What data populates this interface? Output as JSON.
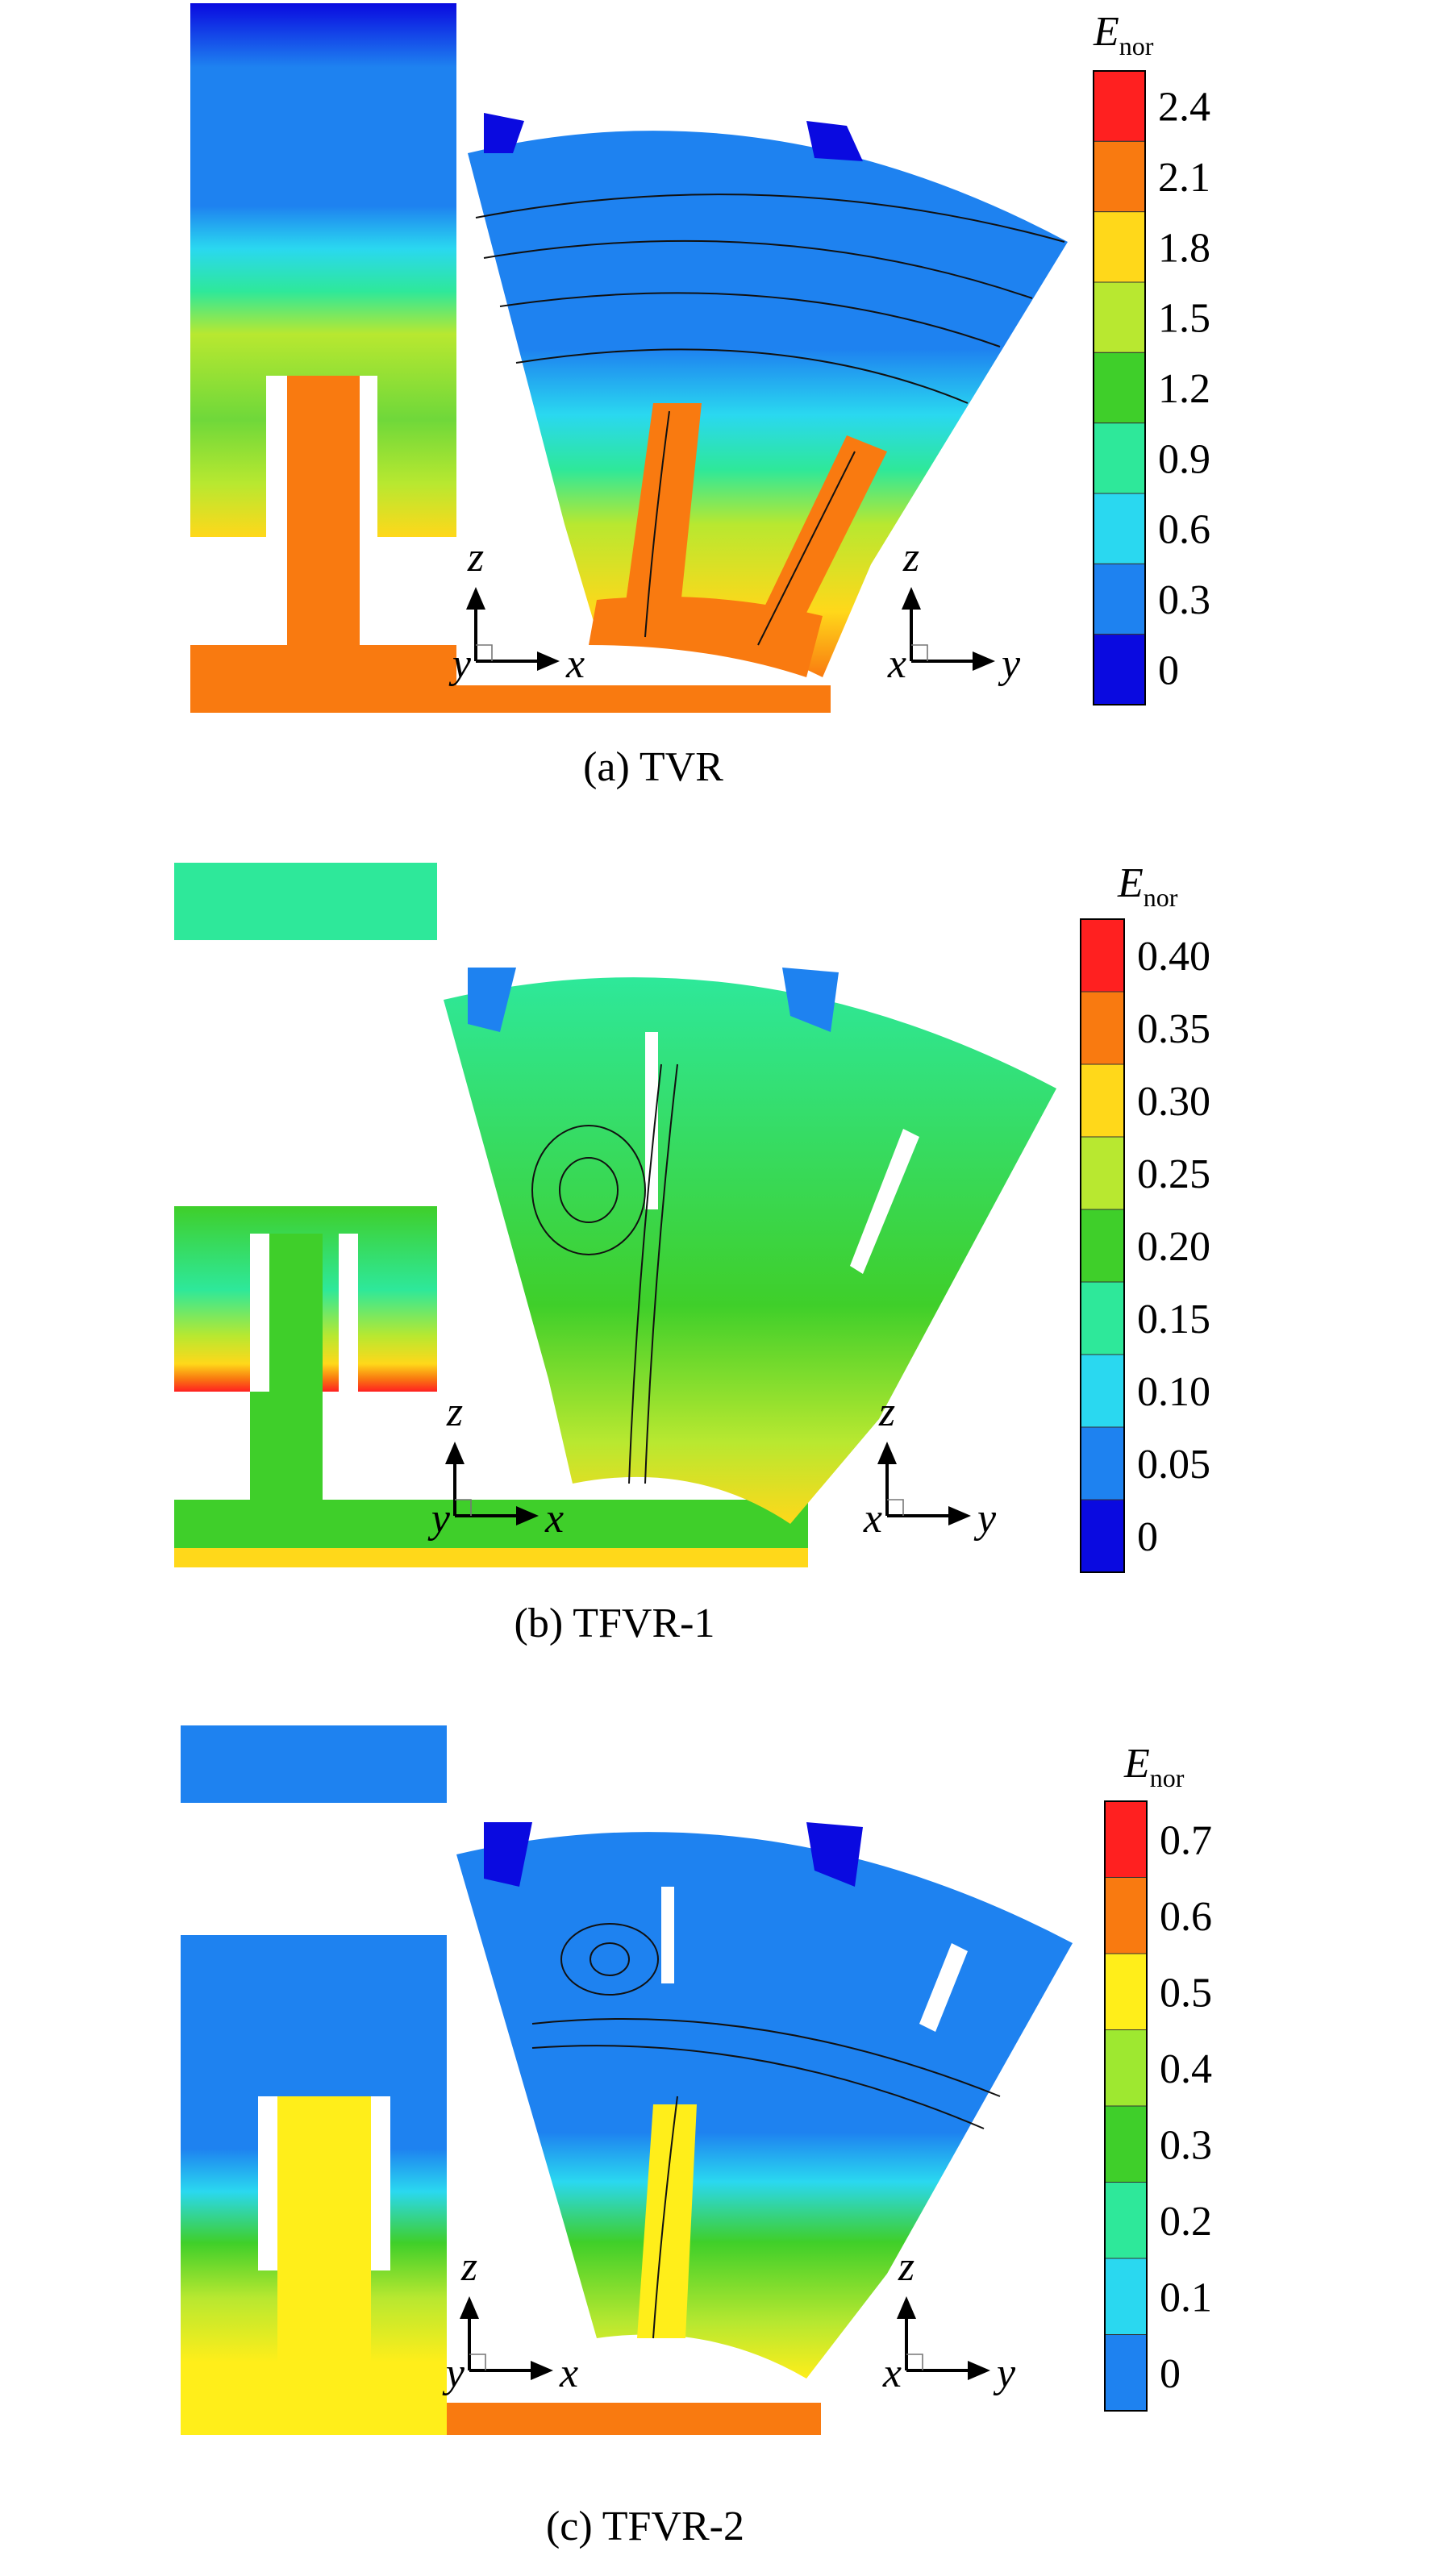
{
  "panels": [
    {
      "caption": "(a) TVR",
      "colorbar": {
        "symbol": "E",
        "subscript": "nor",
        "ticks": [
          "2.4",
          "2.1",
          "1.8",
          "1.5",
          "1.2",
          "0.9",
          "0.6",
          "0.3",
          "0"
        ],
        "colors": [
          "#ff2020",
          "#f97a10",
          "#ffd81a",
          "#b8e830",
          "#3fcf2a",
          "#2ee89a",
          "#2ad8f0",
          "#1e82f0",
          "#0a0ae0"
        ]
      },
      "axes_left": {
        "vertical": "z",
        "origin": "y",
        "horizontal": "x"
      },
      "axes_right": {
        "vertical": "z",
        "origin": "x",
        "horizontal": "y"
      }
    },
    {
      "caption": "(b) TFVR-1",
      "colorbar": {
        "symbol": "E",
        "subscript": "nor",
        "ticks": [
          "0.40",
          "0.35",
          "0.30",
          "0.25",
          "0.20",
          "0.15",
          "0.10",
          "0.05",
          "0"
        ],
        "colors": [
          "#ff2020",
          "#f97a10",
          "#ffd81a",
          "#b8e830",
          "#3fcf2a",
          "#2ee89a",
          "#2ad8f0",
          "#1e82f0",
          "#0a0ae0"
        ]
      },
      "axes_left": {
        "vertical": "z",
        "origin": "y",
        "horizontal": "x"
      },
      "axes_right": {
        "vertical": "z",
        "origin": "x",
        "horizontal": "y"
      }
    },
    {
      "caption": "(c) TFVR-2",
      "colorbar": {
        "symbol": "E",
        "subscript": "nor",
        "ticks": [
          "0.7",
          "0.6",
          "0.5",
          "0.4",
          "0.3",
          "0.2",
          "0.1",
          "0"
        ],
        "colors": [
          "#ff2020",
          "#f97a10",
          "#ffee1a",
          "#9ee830",
          "#3fcf2a",
          "#2ee89a",
          "#2ad8f0",
          "#1e82f0"
        ]
      },
      "axes_left": {
        "vertical": "z",
        "origin": "y",
        "horizontal": "x"
      },
      "axes_right": {
        "vertical": "z",
        "origin": "x",
        "horizontal": "y"
      }
    }
  ]
}
